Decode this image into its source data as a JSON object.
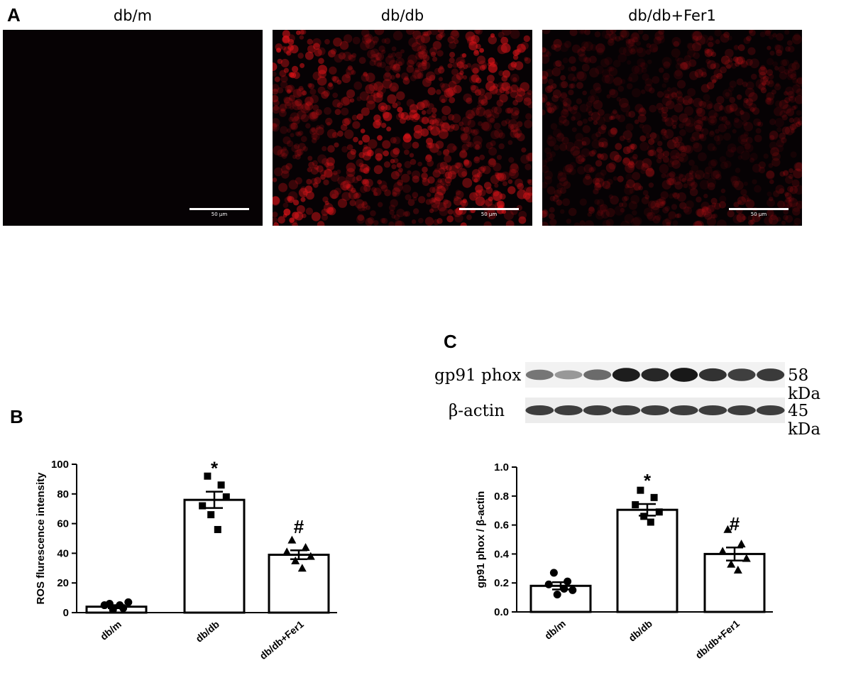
{
  "panel_a": {
    "letter": "A",
    "groups": [
      "db/m",
      "db/db",
      "db/db+Fer1"
    ],
    "scale_label": "50 μm",
    "intensity": [
      0.04,
      1.0,
      0.45
    ]
  },
  "panel_b": {
    "letter": "B"
  },
  "panel_c": {
    "letter": "C",
    "blot_labels": [
      "gp91 phox",
      "β-actin"
    ],
    "blot_kda": [
      "58 kDa",
      "45 kDa"
    ],
    "gp91_band_intensity": [
      0.55,
      0.4,
      0.6,
      0.95,
      0.9,
      0.97,
      0.85,
      0.8,
      0.82
    ],
    "actin_band_intensity": [
      0.8,
      0.8,
      0.8,
      0.8,
      0.8,
      0.8,
      0.8,
      0.8,
      0.8
    ]
  },
  "chart_data": [
    {
      "type": "bar",
      "panel": "B",
      "ylabel": "ROS flurescence intensity",
      "categories": [
        "db/m",
        "db/db",
        "db/db+Fer1"
      ],
      "values": [
        4,
        76,
        39
      ],
      "sem": [
        1.0,
        5.5,
        3.0
      ],
      "ylim": [
        0,
        100
      ],
      "yticks": [
        "0",
        "20",
        "40",
        "60",
        "80",
        "100"
      ],
      "ytick_values": [
        0,
        20,
        40,
        60,
        80,
        100
      ],
      "annotations": [
        "",
        "*",
        "#"
      ],
      "points": [
        {
          "marker": "circle",
          "values": [
            6,
            3,
            5,
            7,
            2,
            5
          ]
        },
        {
          "marker": "square",
          "values": [
            92,
            86,
            72,
            78,
            66,
            56
          ]
        },
        {
          "marker": "triangle",
          "values": [
            49,
            44,
            41,
            38,
            35,
            30
          ]
        }
      ]
    },
    {
      "type": "bar",
      "panel": "C",
      "ylabel": "gp91 phox / β-actin",
      "categories": [
        "db/m",
        "db/db",
        "db/db+Fer1"
      ],
      "values": [
        0.18,
        0.705,
        0.4
      ],
      "sem": [
        0.025,
        0.04,
        0.045
      ],
      "ylim": [
        0,
        1.0
      ],
      "yticks": [
        "0.0",
        "0.2",
        "0.4",
        "0.6",
        "0.8",
        "1.0"
      ],
      "ytick_values": [
        0,
        0.2,
        0.4,
        0.6,
        0.8,
        1.0
      ],
      "annotations": [
        "",
        "*",
        "#"
      ],
      "points": [
        {
          "marker": "circle",
          "values": [
            0.27,
            0.21,
            0.19,
            0.15,
            0.12,
            0.16
          ]
        },
        {
          "marker": "square",
          "values": [
            0.84,
            0.79,
            0.74,
            0.69,
            0.66,
            0.62
          ]
        },
        {
          "marker": "triangle",
          "values": [
            0.57,
            0.47,
            0.42,
            0.37,
            0.33,
            0.29
          ]
        }
      ]
    }
  ]
}
